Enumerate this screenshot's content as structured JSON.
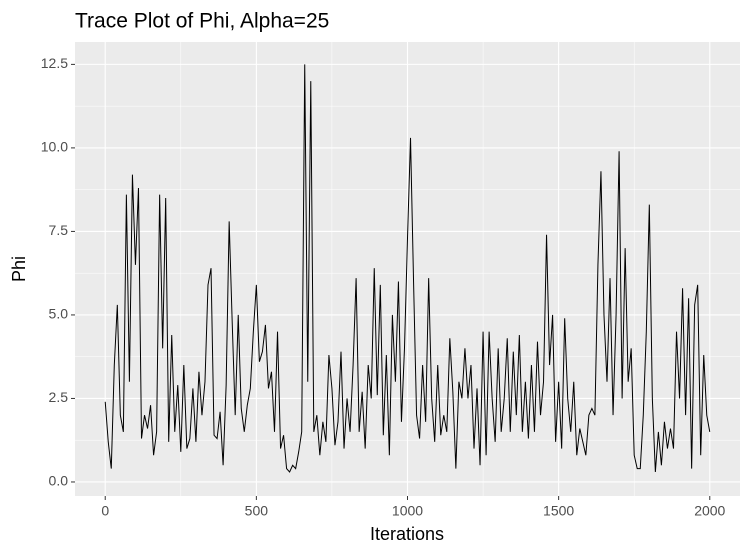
{
  "chart_data": {
    "type": "line",
    "title": "Trace Plot of Phi, Alpha=25",
    "x_label": "Iterations",
    "y_label": "Phi",
    "x": [
      0,
      10,
      20,
      30,
      40,
      50,
      60,
      70,
      80,
      90,
      100,
      110,
      120,
      130,
      140,
      150,
      160,
      170,
      180,
      190,
      200,
      210,
      220,
      230,
      240,
      250,
      260,
      270,
      280,
      290,
      300,
      310,
      320,
      330,
      340,
      350,
      360,
      370,
      380,
      390,
      400,
      410,
      420,
      430,
      440,
      450,
      460,
      470,
      480,
      490,
      500,
      510,
      520,
      530,
      540,
      550,
      560,
      570,
      580,
      590,
      600,
      610,
      620,
      630,
      640,
      650,
      660,
      670,
      680,
      690,
      700,
      710,
      720,
      730,
      740,
      750,
      760,
      770,
      780,
      790,
      800,
      810,
      820,
      830,
      840,
      850,
      860,
      870,
      880,
      890,
      900,
      910,
      920,
      930,
      940,
      950,
      960,
      970,
      980,
      990,
      1000,
      1010,
      1020,
      1030,
      1040,
      1050,
      1060,
      1070,
      1080,
      1090,
      1100,
      1110,
      1120,
      1130,
      1140,
      1150,
      1160,
      1170,
      1180,
      1190,
      1200,
      1210,
      1220,
      1230,
      1240,
      1250,
      1260,
      1270,
      1280,
      1290,
      1300,
      1310,
      1320,
      1330,
      1340,
      1350,
      1360,
      1370,
      1380,
      1390,
      1400,
      1410,
      1420,
      1430,
      1440,
      1450,
      1460,
      1470,
      1480,
      1490,
      1500,
      1510,
      1520,
      1530,
      1540,
      1550,
      1560,
      1570,
      1580,
      1590,
      1600,
      1610,
      1620,
      1630,
      1640,
      1650,
      1660,
      1670,
      1680,
      1690,
      1700,
      1710,
      1720,
      1730,
      1740,
      1750,
      1760,
      1770,
      1780,
      1790,
      1800,
      1810,
      1820,
      1830,
      1840,
      1850,
      1860,
      1870,
      1880,
      1890,
      1900,
      1910,
      1920,
      1930,
      1940,
      1950,
      1960,
      1970,
      1980,
      1990,
      2000
    ],
    "values": [
      2.4,
      1.2,
      0.4,
      3.5,
      5.3,
      2.0,
      1.5,
      8.6,
      3.0,
      9.2,
      6.5,
      8.8,
      1.3,
      2.0,
      1.6,
      2.3,
      0.8,
      1.5,
      8.6,
      4.0,
      8.5,
      1.2,
      4.4,
      1.5,
      2.9,
      0.9,
      3.5,
      1.0,
      1.3,
      2.8,
      1.2,
      3.3,
      2.0,
      3.0,
      5.9,
      6.4,
      1.4,
      1.3,
      2.1,
      0.5,
      2.9,
      7.8,
      4.8,
      2.0,
      5.0,
      2.2,
      1.5,
      2.3,
      2.8,
      4.5,
      5.9,
      3.6,
      3.9,
      4.7,
      2.8,
      3.3,
      1.5,
      4.5,
      1.0,
      1.4,
      0.4,
      0.3,
      0.5,
      0.4,
      0.9,
      1.5,
      12.5,
      3.0,
      12.0,
      1.5,
      2.0,
      0.8,
      1.8,
      1.2,
      3.8,
      2.8,
      1.1,
      1.8,
      3.9,
      1.0,
      2.5,
      1.5,
      3.5,
      6.1,
      1.5,
      2.7,
      1.0,
      3.5,
      2.5,
      6.4,
      2.6,
      5.9,
      1.4,
      3.8,
      0.8,
      5.0,
      3.0,
      6.0,
      1.8,
      4.0,
      7.3,
      10.3,
      6.0,
      2.0,
      1.3,
      3.5,
      1.8,
      6.1,
      2.5,
      1.2,
      3.5,
      1.4,
      2.0,
      1.5,
      4.3,
      2.7,
      0.4,
      3.0,
      2.5,
      4.0,
      2.5,
      3.5,
      1.0,
      2.8,
      0.5,
      4.5,
      0.8,
      4.5,
      2.5,
      1.2,
      4.0,
      1.5,
      2.5,
      4.3,
      1.5,
      3.9,
      2.0,
      4.4,
      1.5,
      3.0,
      1.3,
      3.5,
      1.5,
      4.2,
      2.0,
      3.0,
      7.4,
      3.5,
      5.0,
      1.2,
      3.0,
      1.0,
      4.9,
      2.5,
      1.5,
      3.0,
      0.8,
      1.6,
      1.2,
      0.8,
      2.0,
      2.2,
      2.0,
      6.5,
      9.3,
      5.0,
      3.0,
      6.1,
      2.0,
      5.0,
      9.9,
      2.5,
      7.0,
      3.0,
      4.0,
      0.8,
      0.4,
      0.4,
      2.0,
      4.5,
      8.3,
      2.5,
      0.3,
      1.5,
      0.5,
      1.8,
      1.0,
      1.6,
      1.0,
      4.5,
      2.5,
      5.8,
      2.0,
      5.5,
      0.4,
      5.3,
      5.9,
      0.8,
      3.8,
      2.0,
      1.5
    ],
    "color": "#000000",
    "xlim": [
      -100,
      2100
    ],
    "ylim": [
      -0.42,
      13.17
    ],
    "xticks": [
      0,
      500,
      1000,
      1500,
      2000
    ],
    "yticks": [
      {
        "value": 0,
        "label": "0.0"
      },
      2.5,
      {
        "value": 5,
        "label": "5.0"
      },
      7.5,
      {
        "value": 10,
        "label": "10.0"
      },
      12.5
    ],
    "grid": true
  }
}
